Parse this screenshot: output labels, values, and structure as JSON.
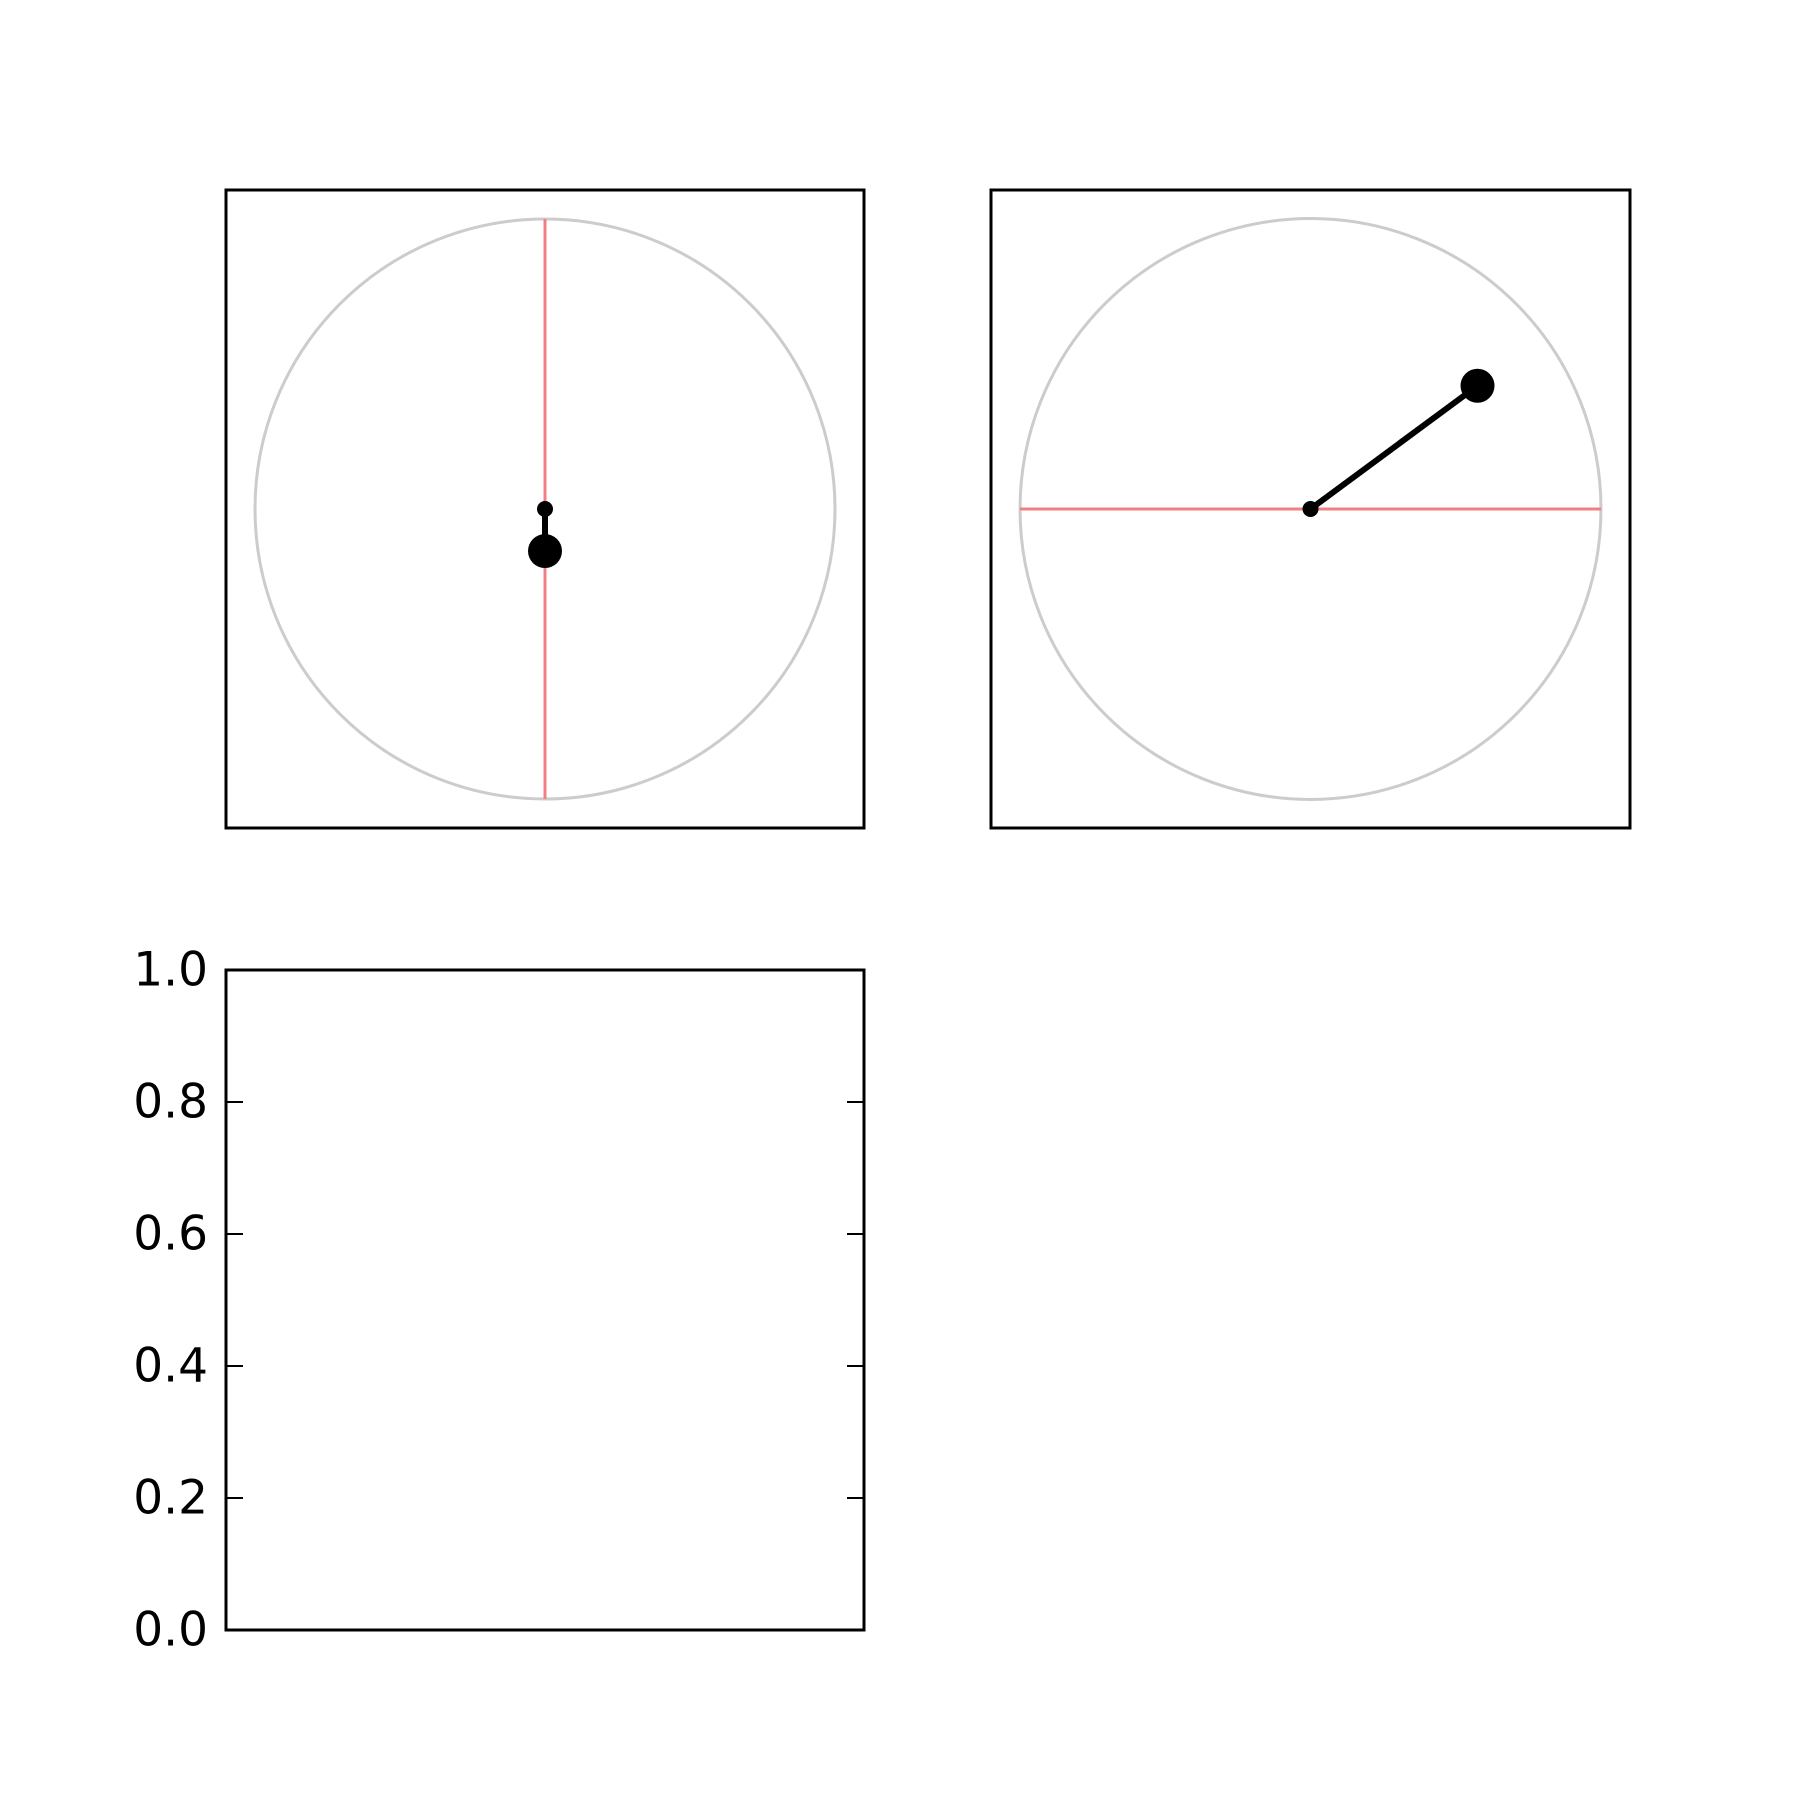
{
  "chart_data": [
    {
      "type": "line",
      "xlim": [
        -1.1,
        1.1
      ],
      "ylim": [
        -1.1,
        1.1
      ],
      "axis_ticks": "none",
      "grid": false,
      "unit_circle": {
        "radius": 1.0,
        "center": [
          0,
          0
        ],
        "color": "#cccccc"
      },
      "reference_line": {
        "orientation": "vertical",
        "from": [
          0,
          -1
        ],
        "to": [
          0,
          1
        ],
        "color": "#f08080"
      },
      "arm": {
        "pivot": [
          0,
          0
        ],
        "tip": [
          0,
          -0.145
        ],
        "color": "#000000",
        "pivot_marker": "small",
        "tip_marker": "large"
      }
    },
    {
      "type": "line",
      "xlim": [
        -1.1,
        1.1
      ],
      "ylim": [
        -1.1,
        1.1
      ],
      "axis_ticks": "none",
      "grid": false,
      "unit_circle": {
        "radius": 1.0,
        "center": [
          0,
          0
        ],
        "color": "#cccccc"
      },
      "reference_line": {
        "orientation": "horizontal",
        "from": [
          -1,
          0
        ],
        "to": [
          1,
          0
        ],
        "color": "#f08080"
      },
      "arm": {
        "pivot": [
          0,
          0
        ],
        "tip": [
          0.575,
          0.425
        ],
        "color": "#000000",
        "pivot_marker": "small",
        "tip_marker": "large"
      }
    },
    {
      "type": "line",
      "ylim": [
        0.0,
        1.0
      ],
      "yticks": [
        "0.0",
        "0.2",
        "0.4",
        "0.6",
        "0.8",
        "1.0"
      ],
      "grid": false,
      "series": []
    }
  ]
}
